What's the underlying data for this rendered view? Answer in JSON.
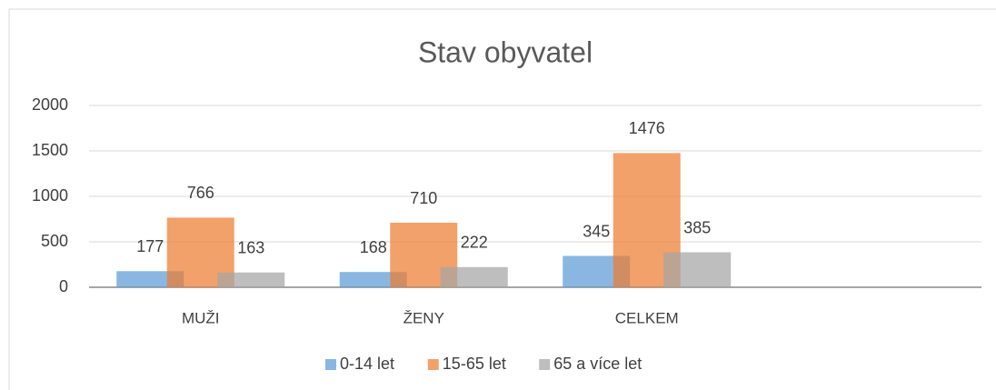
{
  "chart_data": {
    "type": "bar",
    "title": "Stav obyvatel",
    "categories": [
      "MUŽI",
      "ŽENY",
      "CELKEM",
      null
    ],
    "series": [
      {
        "name": "0-14 let",
        "color": "#5b9bd5",
        "values": [
          177,
          168,
          345,
          null
        ]
      },
      {
        "name": "15-65 let",
        "color": "#ed7d31",
        "values": [
          766,
          710,
          1476,
          null
        ]
      },
      {
        "name": "65 a více let",
        "color": "#a5a5a5",
        "values": [
          163,
          222,
          385,
          null
        ]
      }
    ],
    "ylim": [
      0,
      2000
    ],
    "yticks": [
      0,
      500,
      1000,
      1500,
      2000
    ],
    "grid": true,
    "legend": "bottom"
  }
}
